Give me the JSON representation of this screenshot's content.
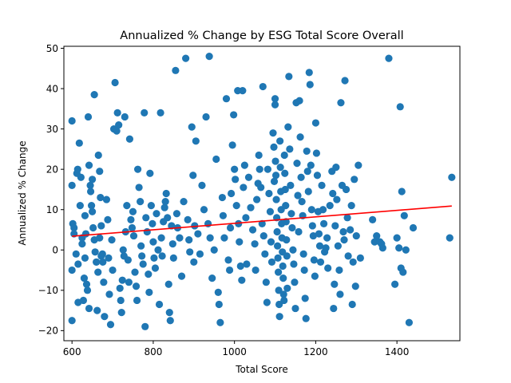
{
  "chart_data": {
    "type": "scatter",
    "title": "Annualized % Change by ESG Total Score Overall",
    "xlabel": "Total Score",
    "ylabel": "Annualized % Change",
    "xlim": [
      580,
      1555
    ],
    "ylim": [
      -22.5,
      50.5
    ],
    "x_ticks": [
      600,
      800,
      1000,
      1200,
      1400
    ],
    "y_ticks": [
      -20,
      -10,
      0,
      10,
      20,
      30,
      40,
      50
    ],
    "grid": false,
    "legend": "none",
    "colors": {
      "points": "#1f77b4",
      "trend_line": "#ff0000"
    },
    "trend_line": {
      "x": [
        600,
        1535
      ],
      "y": [
        3.4,
        10.9
      ]
    },
    "points": [
      [
        600,
        32
      ],
      [
        600,
        16
      ],
      [
        600,
        -5
      ],
      [
        600,
        -17.5
      ],
      [
        602,
        6.5
      ],
      [
        605,
        5.5
      ],
      [
        612,
        19
      ],
      [
        614,
        20
      ],
      [
        615,
        -13
      ],
      [
        618,
        26.5
      ],
      [
        622,
        18
      ],
      [
        625,
        1.5
      ],
      [
        628,
        -12.5
      ],
      [
        630,
        -7
      ],
      [
        632,
        8.5
      ],
      [
        634,
        4
      ],
      [
        638,
        -10
      ],
      [
        640,
        33
      ],
      [
        642,
        21
      ],
      [
        645,
        16
      ],
      [
        648,
        11
      ],
      [
        650,
        9.5
      ],
      [
        652,
        5.5
      ],
      [
        655,
        2.5
      ],
      [
        657,
        -0.5
      ],
      [
        660,
        -3
      ],
      [
        662,
        -15
      ],
      [
        665,
        23.5
      ],
      [
        668,
        19.5
      ],
      [
        670,
        13
      ],
      [
        672,
        6
      ],
      [
        675,
        -1
      ],
      [
        678,
        -8
      ],
      [
        680,
        -16.5
      ],
      [
        605,
        4
      ],
      [
        610,
        -1
      ],
      [
        615,
        -3.5
      ],
      [
        620,
        11
      ],
      [
        625,
        3
      ],
      [
        632,
        -2
      ],
      [
        636,
        -8.5
      ],
      [
        642,
        -14.5
      ],
      [
        646,
        14.5
      ],
      [
        650,
        17.5
      ],
      [
        655,
        38.5
      ],
      [
        660,
        -3
      ],
      [
        664,
        -5.5
      ],
      [
        668,
        3
      ],
      [
        672,
        -1.5
      ],
      [
        676,
        -3
      ],
      [
        685,
        12.5
      ],
      [
        688,
        7.5
      ],
      [
        690,
        -2
      ],
      [
        692,
        -11
      ],
      [
        695,
        -18.5
      ],
      [
        698,
        2.5
      ],
      [
        700,
        -5
      ],
      [
        703,
        30
      ],
      [
        706,
        41.5
      ],
      [
        710,
        29.5
      ],
      [
        712,
        34
      ],
      [
        715,
        31
      ],
      [
        718,
        -9.5
      ],
      [
        720,
        -12.5
      ],
      [
        722,
        -15.5
      ],
      [
        724,
        -7.5
      ],
      [
        726,
        0
      ],
      [
        728,
        -1.5
      ],
      [
        730,
        33
      ],
      [
        732,
        4.5
      ],
      [
        735,
        11
      ],
      [
        738,
        -2.5
      ],
      [
        740,
        -8
      ],
      [
        742,
        27.5
      ],
      [
        745,
        7.5
      ],
      [
        748,
        5.5
      ],
      [
        750,
        9.5
      ],
      [
        752,
        3.5
      ],
      [
        755,
        -5.5
      ],
      [
        758,
        -9
      ],
      [
        760,
        -12.5
      ],
      [
        762,
        20
      ],
      [
        765,
        15.5
      ],
      [
        768,
        12
      ],
      [
        770,
        1
      ],
      [
        772,
        -1.5
      ],
      [
        775,
        -3.5
      ],
      [
        778,
        34
      ],
      [
        780,
        -19
      ],
      [
        782,
        8
      ],
      [
        785,
        4.5
      ],
      [
        788,
        -6
      ],
      [
        790,
        -10.5
      ],
      [
        792,
        19
      ],
      [
        795,
        11
      ],
      [
        798,
        6.5
      ],
      [
        800,
        2
      ],
      [
        802,
        -2
      ],
      [
        805,
        -4.5
      ],
      [
        808,
        9
      ],
      [
        812,
        0
      ],
      [
        815,
        -13.5
      ],
      [
        818,
        34
      ],
      [
        820,
        3
      ],
      [
        822,
        -1.5
      ],
      [
        825,
        7
      ],
      [
        828,
        10.5
      ],
      [
        830,
        12
      ],
      [
        832,
        14
      ],
      [
        835,
        8
      ],
      [
        838,
        -8.5
      ],
      [
        840,
        -15.5
      ],
      [
        842,
        -17.5
      ],
      [
        845,
        6
      ],
      [
        848,
        1.5
      ],
      [
        850,
        -2
      ],
      [
        855,
        44.5
      ],
      [
        858,
        9
      ],
      [
        860,
        5.5
      ],
      [
        865,
        3
      ],
      [
        870,
        -6.5
      ],
      [
        875,
        12
      ],
      [
        880,
        47.5
      ],
      [
        885,
        7.5
      ],
      [
        888,
        2.5
      ],
      [
        890,
        -0.5
      ],
      [
        895,
        30.5
      ],
      [
        898,
        18.5
      ],
      [
        900,
        -3
      ],
      [
        902,
        6
      ],
      [
        905,
        27
      ],
      [
        910,
        4
      ],
      [
        915,
        -1
      ],
      [
        920,
        16
      ],
      [
        925,
        10
      ],
      [
        930,
        33
      ],
      [
        935,
        6.5
      ],
      [
        938,
        48
      ],
      [
        940,
        3
      ],
      [
        945,
        -7
      ],
      [
        950,
        0
      ],
      [
        955,
        22.5
      ],
      [
        960,
        -10.5
      ],
      [
        962,
        -13.5
      ],
      [
        965,
        -18
      ],
      [
        970,
        13
      ],
      [
        972,
        8.5
      ],
      [
        975,
        3
      ],
      [
        980,
        37.5
      ],
      [
        985,
        -2.5
      ],
      [
        988,
        -5
      ],
      [
        990,
        5.5
      ],
      [
        992,
        14
      ],
      [
        995,
        26
      ],
      [
        998,
        33.5
      ],
      [
        1000,
        20
      ],
      [
        1002,
        17.5
      ],
      [
        1005,
        11
      ],
      [
        1008,
        39.5
      ],
      [
        1010,
        6.5
      ],
      [
        1012,
        2
      ],
      [
        1015,
        -4
      ],
      [
        1018,
        -7.5
      ],
      [
        1020,
        39.5
      ],
      [
        1022,
        15.5
      ],
      [
        1025,
        21
      ],
      [
        1028,
        8
      ],
      [
        1030,
        -3.5
      ],
      [
        1035,
        18
      ],
      [
        1040,
        10.5
      ],
      [
        1045,
        5
      ],
      [
        1050,
        1.5
      ],
      [
        1052,
        -5
      ],
      [
        1055,
        12.5
      ],
      [
        1058,
        16.5
      ],
      [
        1060,
        23.5
      ],
      [
        1062,
        20
      ],
      [
        1065,
        15.5
      ],
      [
        1068,
        6.5
      ],
      [
        1070,
        40.5
      ],
      [
        1072,
        3.5
      ],
      [
        1075,
        -1
      ],
      [
        1078,
        -8
      ],
      [
        1080,
        -13
      ],
      [
        1082,
        20
      ],
      [
        1085,
        14
      ],
      [
        1088,
        9.5
      ],
      [
        1090,
        2
      ],
      [
        1092,
        -3
      ],
      [
        1095,
        29
      ],
      [
        1097,
        25.5
      ],
      [
        1098,
        17
      ],
      [
        1100,
        37.5
      ],
      [
        1100,
        36
      ],
      [
        1101,
        22
      ],
      [
        1102,
        18.5
      ],
      [
        1103,
        12.5
      ],
      [
        1104,
        8
      ],
      [
        1105,
        4.5
      ],
      [
        1106,
        1
      ],
      [
        1107,
        -2
      ],
      [
        1108,
        -5.5
      ],
      [
        1109,
        -10
      ],
      [
        1110,
        -13.5
      ],
      [
        1111,
        -16.5
      ],
      [
        1112,
        27
      ],
      [
        1113,
        20.5
      ],
      [
        1114,
        14.5
      ],
      [
        1115,
        10
      ],
      [
        1116,
        6.5
      ],
      [
        1117,
        3
      ],
      [
        1118,
        -0.5
      ],
      [
        1119,
        -4
      ],
      [
        1120,
        -7
      ],
      [
        1121,
        -11
      ],
      [
        1122,
        -12.5
      ],
      [
        1123,
        23.5
      ],
      [
        1124,
        19
      ],
      [
        1125,
        15
      ],
      [
        1126,
        11
      ],
      [
        1127,
        7
      ],
      [
        1128,
        2.5
      ],
      [
        1129,
        -1.5
      ],
      [
        1130,
        -9.5
      ],
      [
        1132,
        30.5
      ],
      [
        1134,
        43
      ],
      [
        1136,
        25
      ],
      [
        1138,
        16
      ],
      [
        1140,
        9
      ],
      [
        1142,
        5.5
      ],
      [
        1144,
        0
      ],
      [
        1146,
        -3.5
      ],
      [
        1148,
        -8
      ],
      [
        1150,
        -14.5
      ],
      [
        1152,
        36.5
      ],
      [
        1154,
        21.5
      ],
      [
        1156,
        13.5
      ],
      [
        1158,
        4.5
      ],
      [
        1160,
        37
      ],
      [
        1162,
        28
      ],
      [
        1164,
        18
      ],
      [
        1166,
        12
      ],
      [
        1168,
        8.5
      ],
      [
        1170,
        -1
      ],
      [
        1172,
        -5
      ],
      [
        1174,
        -12
      ],
      [
        1176,
        -17
      ],
      [
        1178,
        24.5
      ],
      [
        1180,
        19.5
      ],
      [
        1182,
        14.5
      ],
      [
        1184,
        44
      ],
      [
        1186,
        41
      ],
      [
        1188,
        21
      ],
      [
        1190,
        10
      ],
      [
        1192,
        6
      ],
      [
        1194,
        3.5
      ],
      [
        1196,
        -2.5
      ],
      [
        1198,
        -6.5
      ],
      [
        1200,
        31.5
      ],
      [
        1202,
        24
      ],
      [
        1204,
        18.5
      ],
      [
        1206,
        9.5
      ],
      [
        1208,
        4
      ],
      [
        1210,
        1
      ],
      [
        1212,
        -3
      ],
      [
        1215,
        16
      ],
      [
        1218,
        10
      ],
      [
        1220,
        6.5
      ],
      [
        1222,
        -0.5
      ],
      [
        1225,
        0.5
      ],
      [
        1228,
        3
      ],
      [
        1230,
        -4.5
      ],
      [
        1235,
        11
      ],
      [
        1240,
        19.5
      ],
      [
        1242,
        14
      ],
      [
        1244,
        -14.5
      ],
      [
        1246,
        -8.5
      ],
      [
        1248,
        6
      ],
      [
        1250,
        20.5
      ],
      [
        1252,
        12.5
      ],
      [
        1255,
        1
      ],
      [
        1258,
        -5
      ],
      [
        1260,
        -11
      ],
      [
        1262,
        36.5
      ],
      [
        1265,
        16
      ],
      [
        1268,
        4.5
      ],
      [
        1270,
        2.5
      ],
      [
        1272,
        42
      ],
      [
        1275,
        15
      ],
      [
        1278,
        8
      ],
      [
        1280,
        -1.5
      ],
      [
        1285,
        5
      ],
      [
        1288,
        11
      ],
      [
        1290,
        -13.5
      ],
      [
        1292,
        -3
      ],
      [
        1295,
        17.5
      ],
      [
        1298,
        -9
      ],
      [
        1300,
        3.5
      ],
      [
        1305,
        21
      ],
      [
        1310,
        -2
      ],
      [
        1340,
        7.5
      ],
      [
        1345,
        2
      ],
      [
        1350,
        3.5
      ],
      [
        1358,
        2
      ],
      [
        1362,
        1.5
      ],
      [
        1365,
        0.5
      ],
      [
        1380,
        47.5
      ],
      [
        1395,
        -8.5
      ],
      [
        1400,
        3
      ],
      [
        1405,
        0.5
      ],
      [
        1408,
        35.5
      ],
      [
        1410,
        -4.5
      ],
      [
        1412,
        14.5
      ],
      [
        1415,
        -5.5
      ],
      [
        1418,
        8.5
      ],
      [
        1422,
        0
      ],
      [
        1430,
        -18
      ],
      [
        1440,
        5.5
      ],
      [
        1530,
        3
      ],
      [
        1535,
        18
      ]
    ]
  }
}
